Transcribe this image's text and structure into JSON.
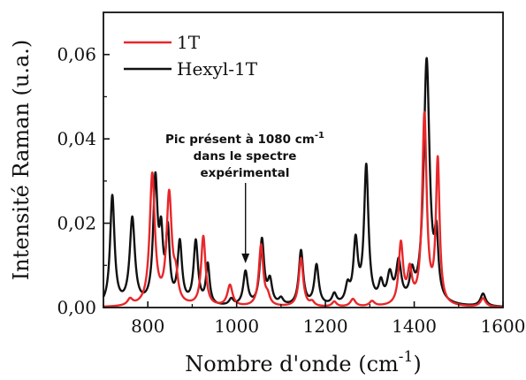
{
  "chart_data": {
    "type": "line",
    "xlabel": "Nombre d'onde (cm",
    "xlabel_sup": "-1",
    "xlabel_end": ")",
    "ylabel": "Intensité Raman (u.a.)",
    "xlim": [
      700,
      1600
    ],
    "ylim": [
      0,
      0.07
    ],
    "xticks": [
      800,
      1000,
      1200,
      1400,
      1600
    ],
    "xtick_labels": [
      "800",
      "1000",
      "1200",
      "1400",
      "1600"
    ],
    "yticks": [
      0,
      0.02,
      0.04,
      0.06
    ],
    "ytick_labels": [
      "0,00",
      "0,02",
      "0,04",
      "0,06"
    ],
    "legend_position": "top-left",
    "annotation": {
      "line1": "Pic présent à 1080 cm",
      "line1_sup": "-1",
      "line2": "dans le spectre",
      "line3": "expérimental",
      "arrow_x": 1020,
      "arrow_y": 0.0105
    },
    "series": [
      {
        "name": "1T",
        "color": "#e8272a",
        "peaks": [
          [
            760,
            0.0015,
            7
          ],
          [
            810,
            0.031,
            7
          ],
          [
            848,
            0.026,
            7
          ],
          [
            863,
            0.0055,
            6
          ],
          [
            925,
            0.0165,
            6
          ],
          [
            985,
            0.005,
            7
          ],
          [
            1055,
            0.0145,
            6
          ],
          [
            1070,
            0.002,
            6
          ],
          [
            1145,
            0.0115,
            6
          ],
          [
            1170,
            0.001,
            6
          ],
          [
            1220,
            0.0012,
            6
          ],
          [
            1262,
            0.0018,
            7
          ],
          [
            1305,
            0.0012,
            7
          ],
          [
            1370,
            0.0145,
            6
          ],
          [
            1390,
            0.0075,
            6
          ],
          [
            1423,
            0.045,
            6
          ],
          [
            1453,
            0.034,
            5
          ],
          [
            1555,
            0.002,
            7
          ]
        ]
      },
      {
        "name": "Hexyl-1T",
        "color": "#111111",
        "peaks": [
          [
            720,
            0.026,
            6
          ],
          [
            765,
            0.0205,
            7
          ],
          [
            817,
            0.029,
            6
          ],
          [
            830,
            0.014,
            5
          ],
          [
            845,
            0.0165,
            5
          ],
          [
            872,
            0.0145,
            6
          ],
          [
            908,
            0.015,
            6
          ],
          [
            935,
            0.0095,
            5
          ],
          [
            988,
            0.0015,
            6
          ],
          [
            1020,
            0.008,
            6
          ],
          [
            1057,
            0.0155,
            6
          ],
          [
            1075,
            0.0055,
            6
          ],
          [
            1100,
            0.0015,
            6
          ],
          [
            1145,
            0.013,
            6
          ],
          [
            1180,
            0.0095,
            6
          ],
          [
            1220,
            0.0025,
            6
          ],
          [
            1250,
            0.004,
            6
          ],
          [
            1268,
            0.0145,
            6
          ],
          [
            1292,
            0.0325,
            6
          ],
          [
            1325,
            0.0045,
            6
          ],
          [
            1345,
            0.0065,
            7
          ],
          [
            1365,
            0.0095,
            7
          ],
          [
            1395,
            0.006,
            6
          ],
          [
            1428,
            0.058,
            8
          ],
          [
            1450,
            0.0135,
            5
          ],
          [
            1555,
            0.003,
            7
          ]
        ]
      }
    ]
  }
}
